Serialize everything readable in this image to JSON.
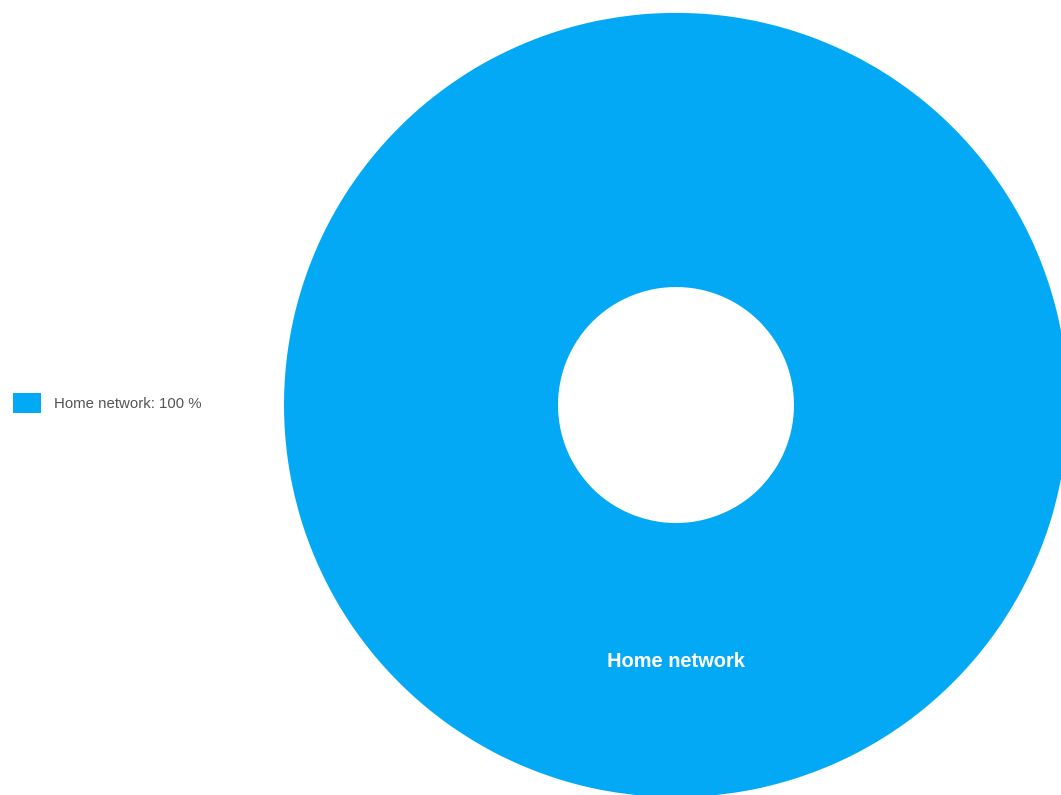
{
  "chart_data": {
    "type": "pie",
    "donut": true,
    "categories": [
      "Home network"
    ],
    "values": [
      100
    ],
    "unit": "%",
    "colors": [
      "#03a9f4"
    ],
    "legend_placement": "left",
    "legend": [
      {
        "label": "Home network: 100 %",
        "color": "#03a9f4"
      }
    ],
    "slice_labels": [
      "Home network"
    ]
  }
}
